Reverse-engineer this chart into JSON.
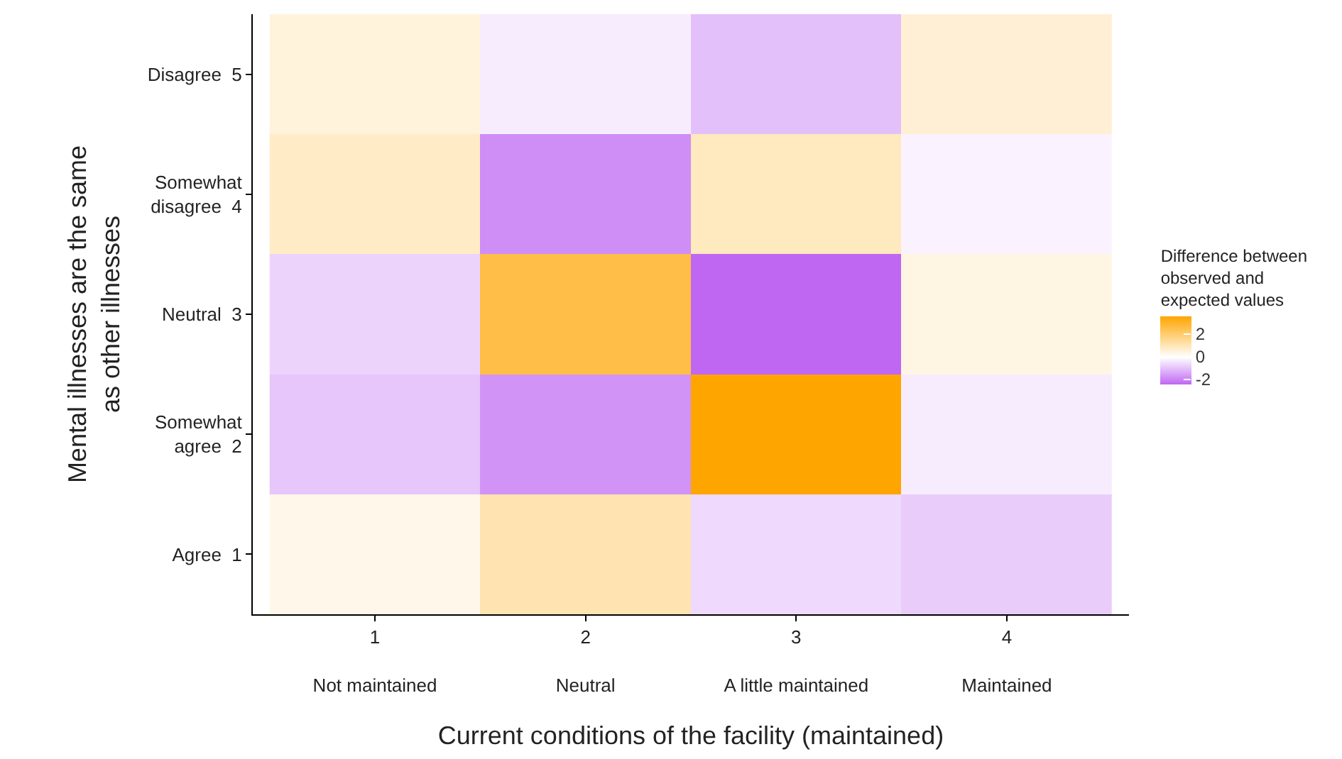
{
  "chart_data": {
    "type": "heatmap",
    "xlabel": "Current conditions of the facility (maintained)",
    "ylabel": "Mental illnesses are the same\nas other illnesses",
    "legend_title": "Difference between\nobserved and\nexpected values",
    "categories": [
      "1\n\nNot maintained",
      "2\n\nNeutral",
      "3\n\nA little maintained",
      "4\n\nMaintained"
    ],
    "y_categories": [
      "Disagree  5",
      "Somewhat\ndisagree  4",
      "Neutral  3",
      "Somewhat\nagree  2",
      "Agree  1"
    ],
    "cells": [
      [
        0.5,
        -0.3,
        -1.0,
        0.6
      ],
      [
        0.8,
        -1.8,
        0.9,
        -0.2
      ],
      [
        -0.7,
        2.6,
        -2.4,
        0.4
      ],
      [
        -0.9,
        -1.7,
        3.6,
        -0.3
      ],
      [
        0.3,
        1.1,
        -0.6,
        -0.8
      ]
    ],
    "clim": [
      -2.4,
      3.6
    ],
    "cticks": [
      -2,
      0,
      2
    ]
  }
}
